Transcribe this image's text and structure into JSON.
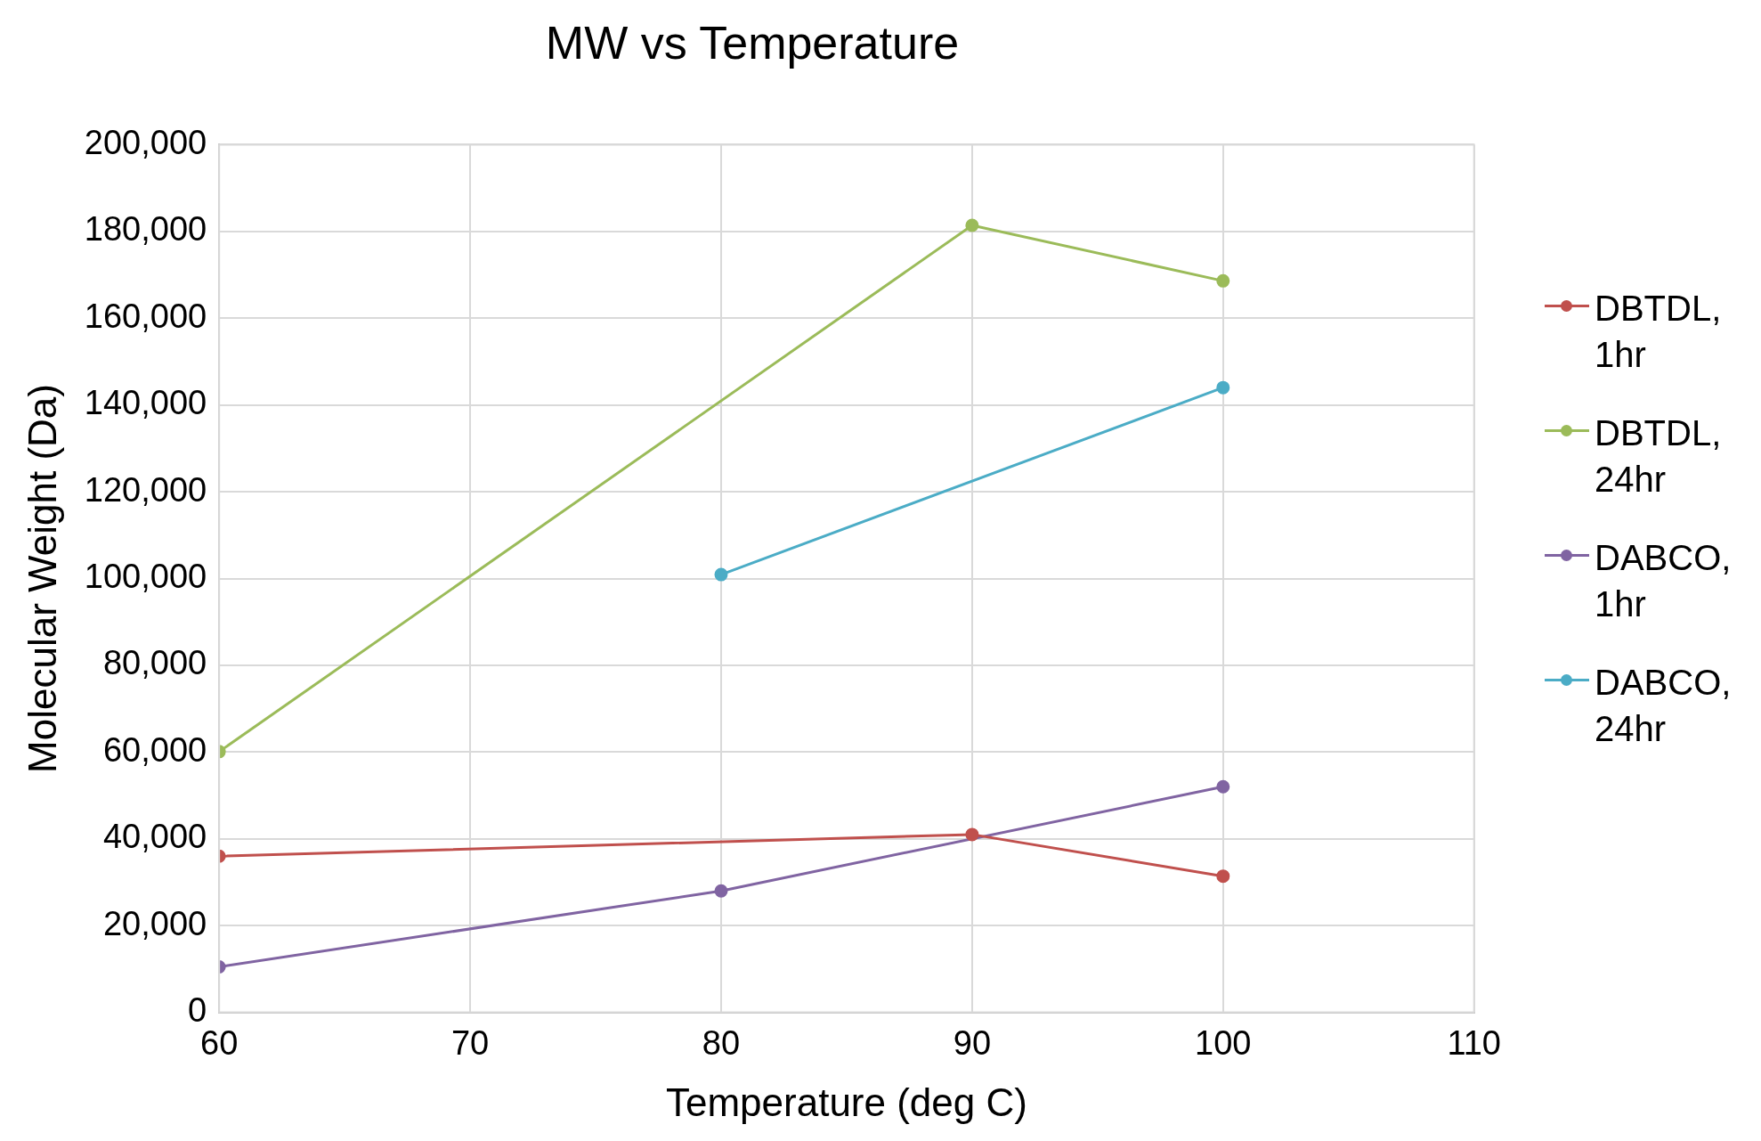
{
  "chart_data": {
    "type": "line",
    "title": "MW vs Temperature",
    "xlabel": "Temperature (deg C)",
    "ylabel": "Molecular Weight (Da)",
    "xlim": [
      60,
      110
    ],
    "xticks": [
      60,
      70,
      80,
      90,
      100,
      110
    ],
    "ylim": [
      0,
      200000
    ],
    "yticks": [
      0,
      {
        "value": 20000,
        "label": "20,000"
      },
      {
        "value": 40000,
        "label": "40,000"
      },
      {
        "value": 60000,
        "label": "60,000"
      },
      {
        "value": 80000,
        "label": "80,000"
      },
      {
        "value": 100000,
        "label": "100,000"
      },
      {
        "value": 120000,
        "label": "120,000"
      },
      {
        "value": 140000,
        "label": "140,000"
      },
      {
        "value": 160000,
        "label": "160,000"
      },
      {
        "value": 180000,
        "label": "180,000"
      },
      {
        "value": 200000,
        "label": "200,000"
      }
    ],
    "grid": true,
    "legend": "right",
    "marker": "circle",
    "line_style": "solid",
    "series": [
      {
        "name": "DBTDL, 1hr",
        "color": "#c0504d",
        "x": [
          60,
          90,
          100
        ],
        "values": [
          36000,
          41000,
          31400
        ]
      },
      {
        "name": "DBTDL, 24hr",
        "color": "#9bbb59",
        "x": [
          60,
          90,
          100
        ],
        "values": [
          60100,
          181400,
          168600
        ]
      },
      {
        "name": "DABCO, 1hr",
        "color": "#8064a2",
        "x": [
          60,
          80,
          100
        ],
        "values": [
          10500,
          28000,
          52000
        ]
      },
      {
        "name": "DABCO, 24hr",
        "color": "#4bacc6",
        "x": [
          80,
          100
        ],
        "values": [
          100900,
          144000
        ]
      }
    ]
  }
}
